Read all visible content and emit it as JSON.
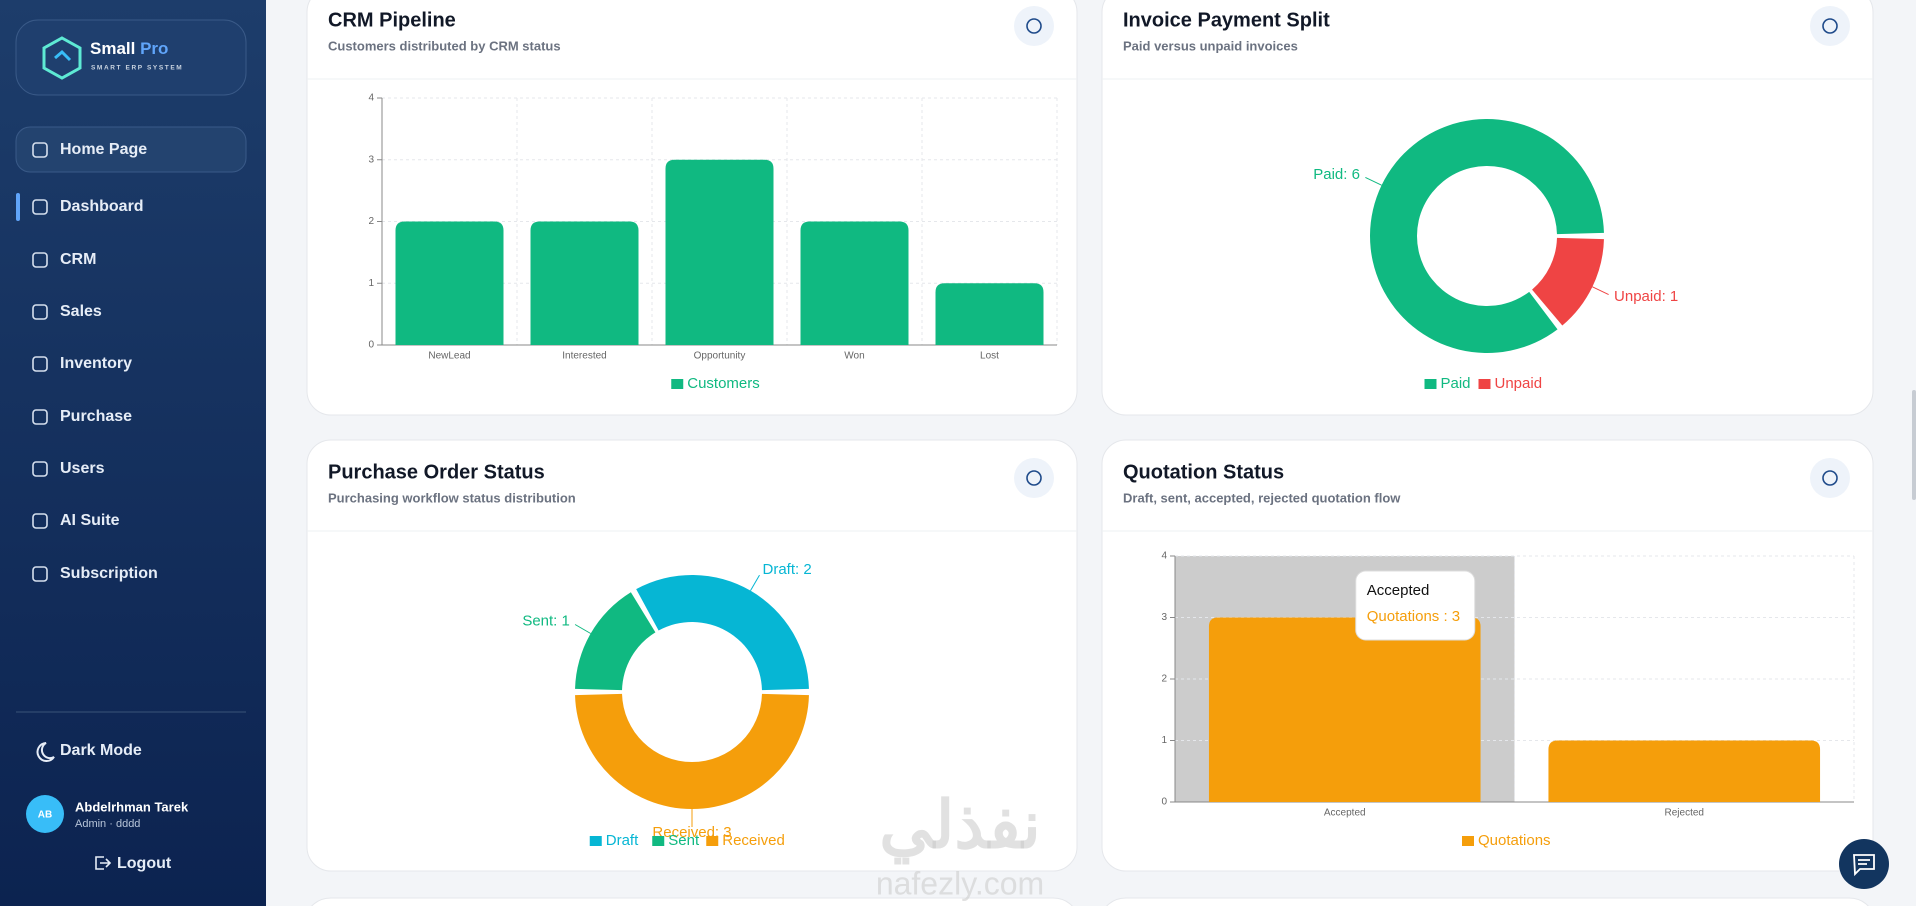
{
  "sidebar": {
    "brand": "Small",
    "brand_accent": "Pro",
    "tagline": "SMART ERP SYSTEM",
    "nav": [
      "Home Page",
      "Dashboard",
      "CRM",
      "Sales",
      "Inventory",
      "Purchase",
      "Users",
      "AI Suite",
      "Subscription"
    ],
    "dark_mode": "Dark Mode",
    "user": {
      "initials": "AB",
      "name": "Abdelrhman Tarek",
      "role": "Admin · dddd"
    },
    "logout": "Logout"
  },
  "chart_data": [
    {
      "type": "bar",
      "title": "CRM Pipeline",
      "subtitle": "Customers distributed by CRM status",
      "categories": [
        "NewLead",
        "Interested",
        "Opportunity",
        "Won",
        "Lost"
      ],
      "series": [
        {
          "name": "Customers",
          "color": "#10b981",
          "values": [
            2,
            2,
            3,
            2,
            1
          ]
        }
      ],
      "ylim": [
        0,
        4
      ],
      "yticks": [
        0,
        1,
        2,
        3,
        4
      ],
      "grid": true
    },
    {
      "type": "pie",
      "title": "Invoice Payment Split",
      "subtitle": "Paid versus unpaid invoices",
      "categories": [
        "Paid",
        "Unpaid"
      ],
      "values": [
        6,
        1
      ],
      "value_labels": [
        "Paid: 6",
        "Unpaid: 1"
      ],
      "colors": [
        "#10b981",
        "#ef4444"
      ]
    },
    {
      "type": "pie",
      "title": "Purchase Order Status",
      "subtitle": "Purchasing workflow status distribution",
      "categories": [
        "Draft",
        "Sent",
        "Received"
      ],
      "values": [
        2,
        1,
        3
      ],
      "value_labels": [
        "Draft: 2",
        "Sent: 1",
        "Received: 3"
      ],
      "colors": [
        "#06b6d4",
        "#10b981",
        "#f59e0b"
      ]
    },
    {
      "type": "bar",
      "title": "Quotation Status",
      "subtitle": "Draft, sent, accepted, rejected quotation flow",
      "categories": [
        "Accepted",
        "Rejected"
      ],
      "series": [
        {
          "name": "Quotations",
          "color": "#f59e0b",
          "values": [
            3,
            1
          ]
        }
      ],
      "ylim": [
        0,
        4
      ],
      "yticks": [
        0,
        1,
        2,
        3,
        4
      ],
      "grid": true,
      "tooltip": {
        "category": "Accepted",
        "text": "Quotations : 3"
      }
    }
  ],
  "watermark": {
    "text": "نفذلي",
    "url": "nafezly.com"
  }
}
